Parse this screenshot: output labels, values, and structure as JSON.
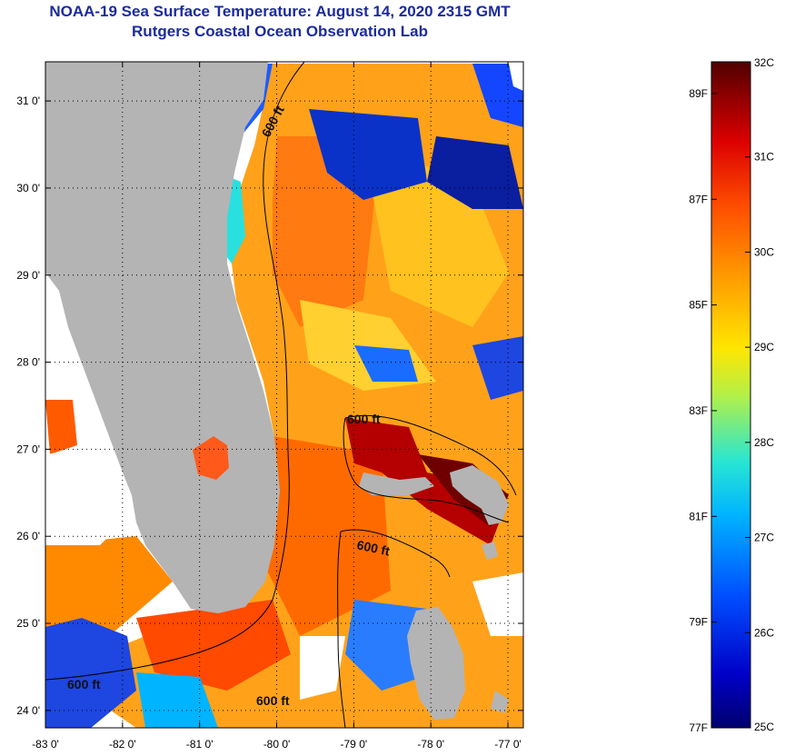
{
  "header": {
    "title": "NOAA-19 Sea Surface Temperature:  August 14, 2020 2315 GMT",
    "subtitle": "Rutgers Coastal Ocean Observation Lab"
  },
  "map": {
    "longitude_range": [
      -83.0,
      -76.8
    ],
    "latitude_range": [
      23.8,
      31.45
    ],
    "lon_ticks": [
      {
        "value": -83,
        "label": "-83 0'"
      },
      {
        "value": -82,
        "label": "-82 0'"
      },
      {
        "value": -81,
        "label": "-81 0'"
      },
      {
        "value": -80,
        "label": "-80 0'"
      },
      {
        "value": -79,
        "label": "-79 0'"
      },
      {
        "value": -78,
        "label": "-78 0'"
      },
      {
        "value": -77,
        "label": "-77 0'"
      }
    ],
    "lat_ticks": [
      {
        "value": 31,
        "label": "31 0'"
      },
      {
        "value": 30,
        "label": "30 0'"
      },
      {
        "value": 29,
        "label": "29 0'"
      },
      {
        "value": 28,
        "label": "28 0'"
      },
      {
        "value": 27,
        "label": "27 0'"
      },
      {
        "value": 26,
        "label": "26 0'"
      },
      {
        "value": 25,
        "label": "25 0'"
      },
      {
        "value": 24,
        "label": "24 0'"
      }
    ],
    "grid": "dotted",
    "land_color": "#b4b4b4",
    "contour_labels": [
      "600 ft",
      "600 ft",
      "600 ft",
      "600 ft",
      "600 ft"
    ]
  },
  "colorbar": {
    "range_c": [
      25,
      32
    ],
    "celsius_labels": [
      "32C",
      "31C",
      "30C",
      "29C",
      "28C",
      "27C",
      "26C",
      "25C"
    ],
    "fahrenheit_labels": [
      "89F",
      "87F",
      "85F",
      "83F",
      "81F",
      "79F",
      "77F"
    ],
    "colors": [
      "#00006e",
      "#0000c8",
      "#0050ff",
      "#00b4ff",
      "#28e6d2",
      "#b4f046",
      "#ffe600",
      "#ffa000",
      "#ff5000",
      "#dc0000",
      "#8c0000",
      "#500000"
    ]
  }
}
